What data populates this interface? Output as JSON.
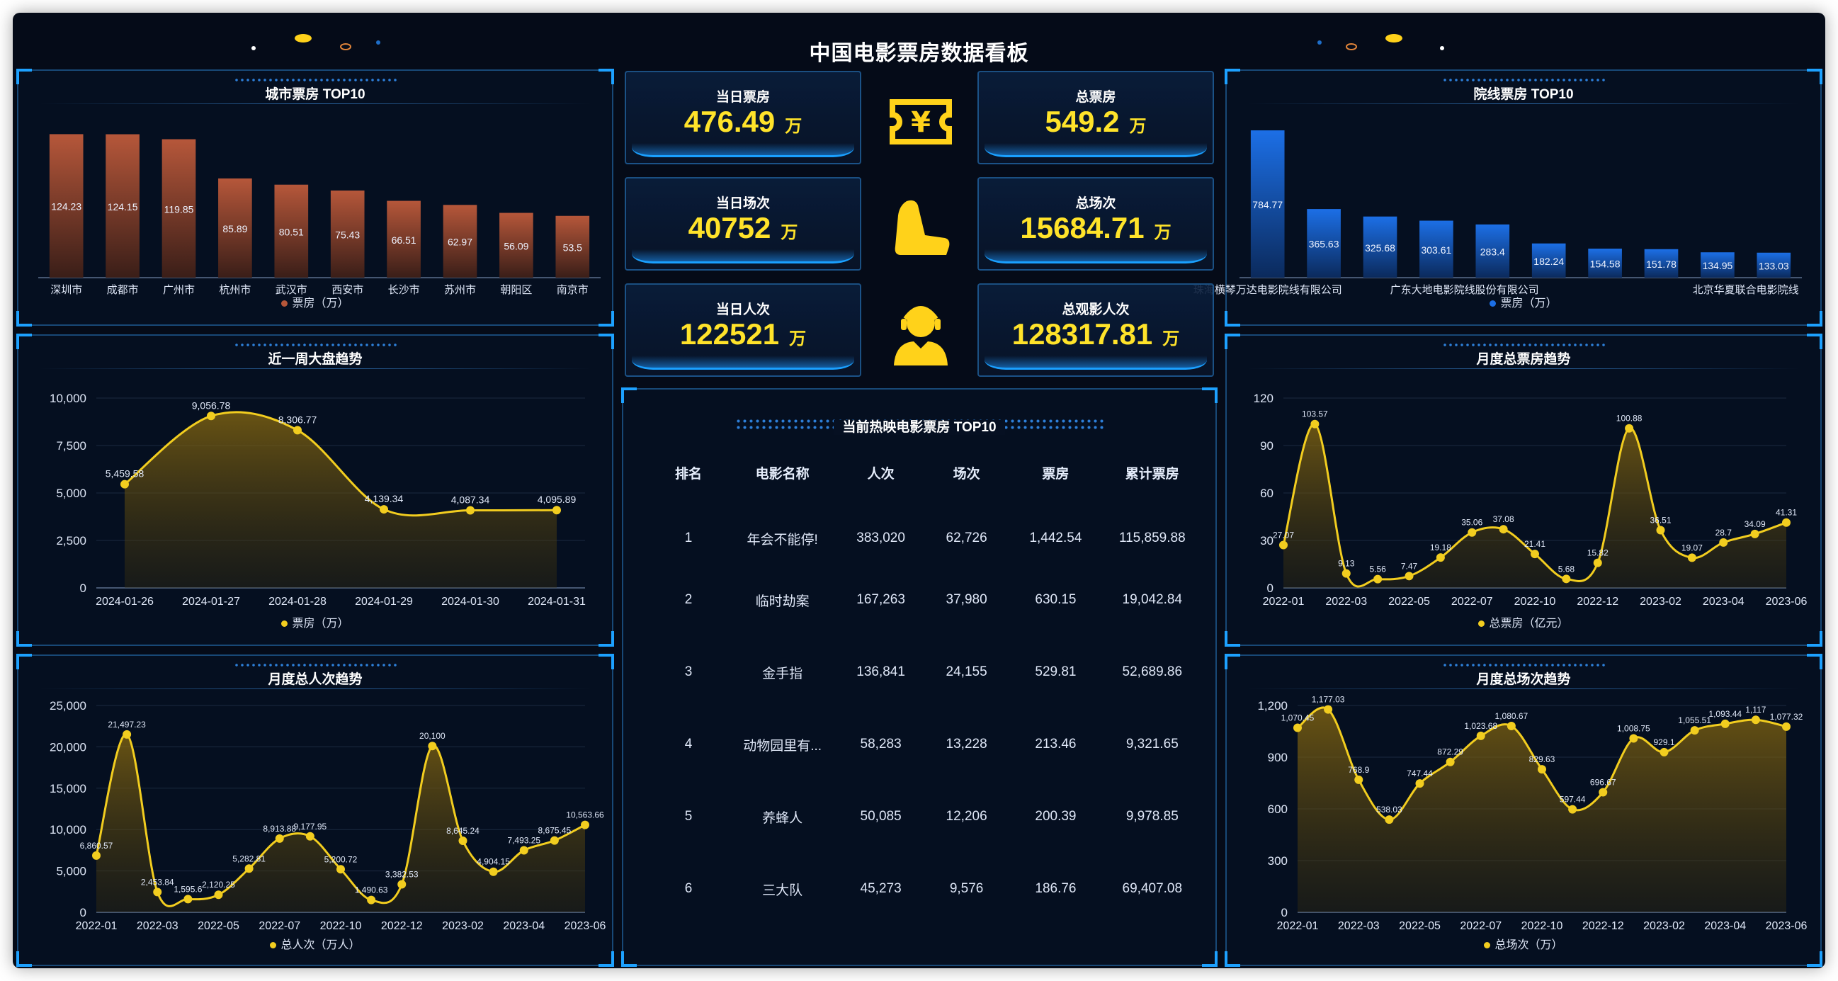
{
  "title": "中国电影票房数据看板",
  "colors": {
    "accent": "#ffe32a",
    "bar_orange": "#b6573a",
    "bar_blue": "#1c6fe6",
    "line": "#f2cd1f",
    "frame": "#1da1ff"
  },
  "stats": [
    {
      "label": "当日票房",
      "value": "476.49",
      "unit": "万"
    },
    {
      "label": "总票房",
      "value": "549.2",
      "unit": "万"
    },
    {
      "label": "当日场次",
      "value": "40752",
      "unit": "万"
    },
    {
      "label": "总场次",
      "value": "15684.71",
      "unit": "万"
    },
    {
      "label": "当日人次",
      "value": "122521",
      "unit": "万"
    },
    {
      "label": "总观影人次",
      "value": "128317.81",
      "unit": "万"
    }
  ],
  "stat_icons": [
    "ticket-icon",
    "seat-icon",
    "audience-icon"
  ],
  "movies": {
    "title": "当前热映电影票房 TOP10",
    "columns": [
      "排名",
      "电影名称",
      "人次",
      "场次",
      "票房",
      "累计票房"
    ],
    "rows": [
      [
        "1",
        "年会不能停!",
        "383,020",
        "62,726",
        "1,442.54",
        "115,859.88"
      ],
      [
        "2",
        "临时劫案",
        "167,263",
        "37,980",
        "630.15",
        "19,042.84"
      ],
      [
        "3",
        "金手指",
        "136,841",
        "24,155",
        "529.81",
        "52,689.86"
      ],
      [
        "4",
        "动物园里有...",
        "58,283",
        "13,228",
        "213.46",
        "9,321.65"
      ],
      [
        "5",
        "养蜂人",
        "50,085",
        "12,206",
        "200.39",
        "9,978.85"
      ],
      [
        "6",
        "三大队",
        "45,273",
        "9,576",
        "186.76",
        "69,407.08"
      ]
    ]
  },
  "chart_data": [
    {
      "id": "city",
      "type": "bar",
      "title": "城市票房 TOP10",
      "legend": "票房（万）",
      "categories": [
        "深圳市",
        "成都市",
        "广州市",
        "杭州市",
        "武汉市",
        "西安市",
        "长沙市",
        "苏州市",
        "朝阳区",
        "南京市"
      ],
      "values": [
        124.23,
        124.15,
        119.85,
        85.89,
        80.51,
        75.43,
        66.51,
        62.97,
        56.09,
        53.5
      ],
      "ylim": [
        0,
        130
      ]
    },
    {
      "id": "cinema",
      "type": "bar",
      "title": "院线票房 TOP10",
      "legend": "票房（万）",
      "categories": [
        "珠海横琴万达电影院线有限公司",
        "",
        "广东大地电影院线股份有限公司",
        "",
        "",
        "",
        "北京华夏联合电影院线",
        "",
        "",
        ""
      ],
      "tick_labels": [
        "珠海横琴万达电影院线有限公司",
        "广东大地电影院线股份有限公司",
        "北京华夏联合电影院线"
      ],
      "values": [
        784.77,
        365.63,
        325.68,
        303.61,
        283.4,
        182.24,
        154.58,
        151.78,
        134.95,
        133.03
      ],
      "ylim": [
        0,
        800
      ]
    },
    {
      "id": "week",
      "type": "line",
      "title": "近一周大盘趋势",
      "legend": "票房（万）",
      "x": [
        "2024-01-26",
        "2024-01-27",
        "2024-01-28",
        "2024-01-29",
        "2024-01-30",
        "2024-01-31"
      ],
      "values": [
        5459.58,
        9056.78,
        8306.77,
        4139.34,
        4087.34,
        4095.89
      ],
      "labels": [
        "5,459.58",
        "9,056.78",
        "8,306.77",
        "4,139.34",
        "4,087.34",
        "4,095.89"
      ],
      "ylim": [
        0,
        10000
      ],
      "yticks": [
        "0",
        "2,500",
        "5,000",
        "7,500",
        "10,000"
      ]
    },
    {
      "id": "people",
      "type": "line",
      "title": "月度总人次趋势",
      "legend": "总人次（万人）",
      "x_ticks": [
        "2022-01",
        "2022-03",
        "2022-05",
        "2022-07",
        "2022-10",
        "2022-12",
        "2023-02",
        "2023-04",
        "2023-06"
      ],
      "values": [
        6860.57,
        21497.23,
        2453.84,
        1595.6,
        2120.25,
        5282.81,
        8913.88,
        9177.95,
        5200.72,
        1490.63,
        3382.53,
        20100,
        8645.24,
        4904.15,
        7493.25,
        8675.45,
        10563.66
      ],
      "labels": [
        "6,860.57",
        "21,497.23",
        "2,453.84",
        "1,595.6",
        "2,120.25",
        "5,282.81",
        "8,913.88",
        "9,177.95",
        "5,200.72",
        "1,490.63",
        "3,382.53",
        "20,100",
        "8,645.24",
        "4,904.15",
        "7,493.25",
        "8,675.45",
        "10,563.66"
      ],
      "ylim": [
        0,
        25000
      ],
      "yticks": [
        "0",
        "5,000",
        "10,000",
        "15,000",
        "20,000",
        "25,000"
      ]
    },
    {
      "id": "box",
      "type": "line",
      "title": "月度总票房趋势",
      "legend": "总票房（亿元）",
      "x_ticks": [
        "2022-01",
        "2022-03",
        "2022-05",
        "2022-07",
        "2022-10",
        "2022-12",
        "2023-02",
        "2023-04",
        "2023-06"
      ],
      "values": [
        27.07,
        103.57,
        9.13,
        5.56,
        7.47,
        19.18,
        35.06,
        37.08,
        21.41,
        5.68,
        15.82,
        100.88,
        36.51,
        19.07,
        28.7,
        34.09,
        41.31
      ],
      "labels": [
        "27.07",
        "103.57",
        "9.13",
        "5.56",
        "7.47",
        "19.18",
        "35.06",
        "37.08",
        "21.41",
        "5.68",
        "15.82",
        "100.88",
        "36.51",
        "19.07",
        "28.7",
        "34.09",
        "41.31"
      ],
      "ylim": [
        0,
        120
      ],
      "yticks": [
        "0",
        "30",
        "60",
        "90",
        "120"
      ]
    },
    {
      "id": "shows",
      "type": "line",
      "title": "月度总场次趋势",
      "legend": "总场次（万）",
      "x_ticks": [
        "2022-01",
        "2022-03",
        "2022-05",
        "2022-07",
        "2022-10",
        "2022-12",
        "2023-02",
        "2023-04",
        "2023-06"
      ],
      "values": [
        1070.45,
        1177.03,
        768.9,
        538.03,
        747.44,
        872.29,
        1023.68,
        1080.67,
        829.63,
        597.44,
        696.67,
        1008.75,
        929.1,
        1055.51,
        1093.44,
        1117,
        1077.32
      ],
      "labels": [
        "1,070.45",
        "1,177.03",
        "768.9",
        "538.03",
        "747.44",
        "872.29",
        "1,023.68",
        "1,080.67",
        "829.63",
        "597.44",
        "696.67",
        "1,008.75",
        "929.1",
        "1,055.51",
        "1,093.44",
        "1,117",
        "1,077.32"
      ],
      "ylim": [
        0,
        1200
      ],
      "yticks": [
        "0",
        "300",
        "600",
        "900",
        "1,200"
      ]
    }
  ]
}
